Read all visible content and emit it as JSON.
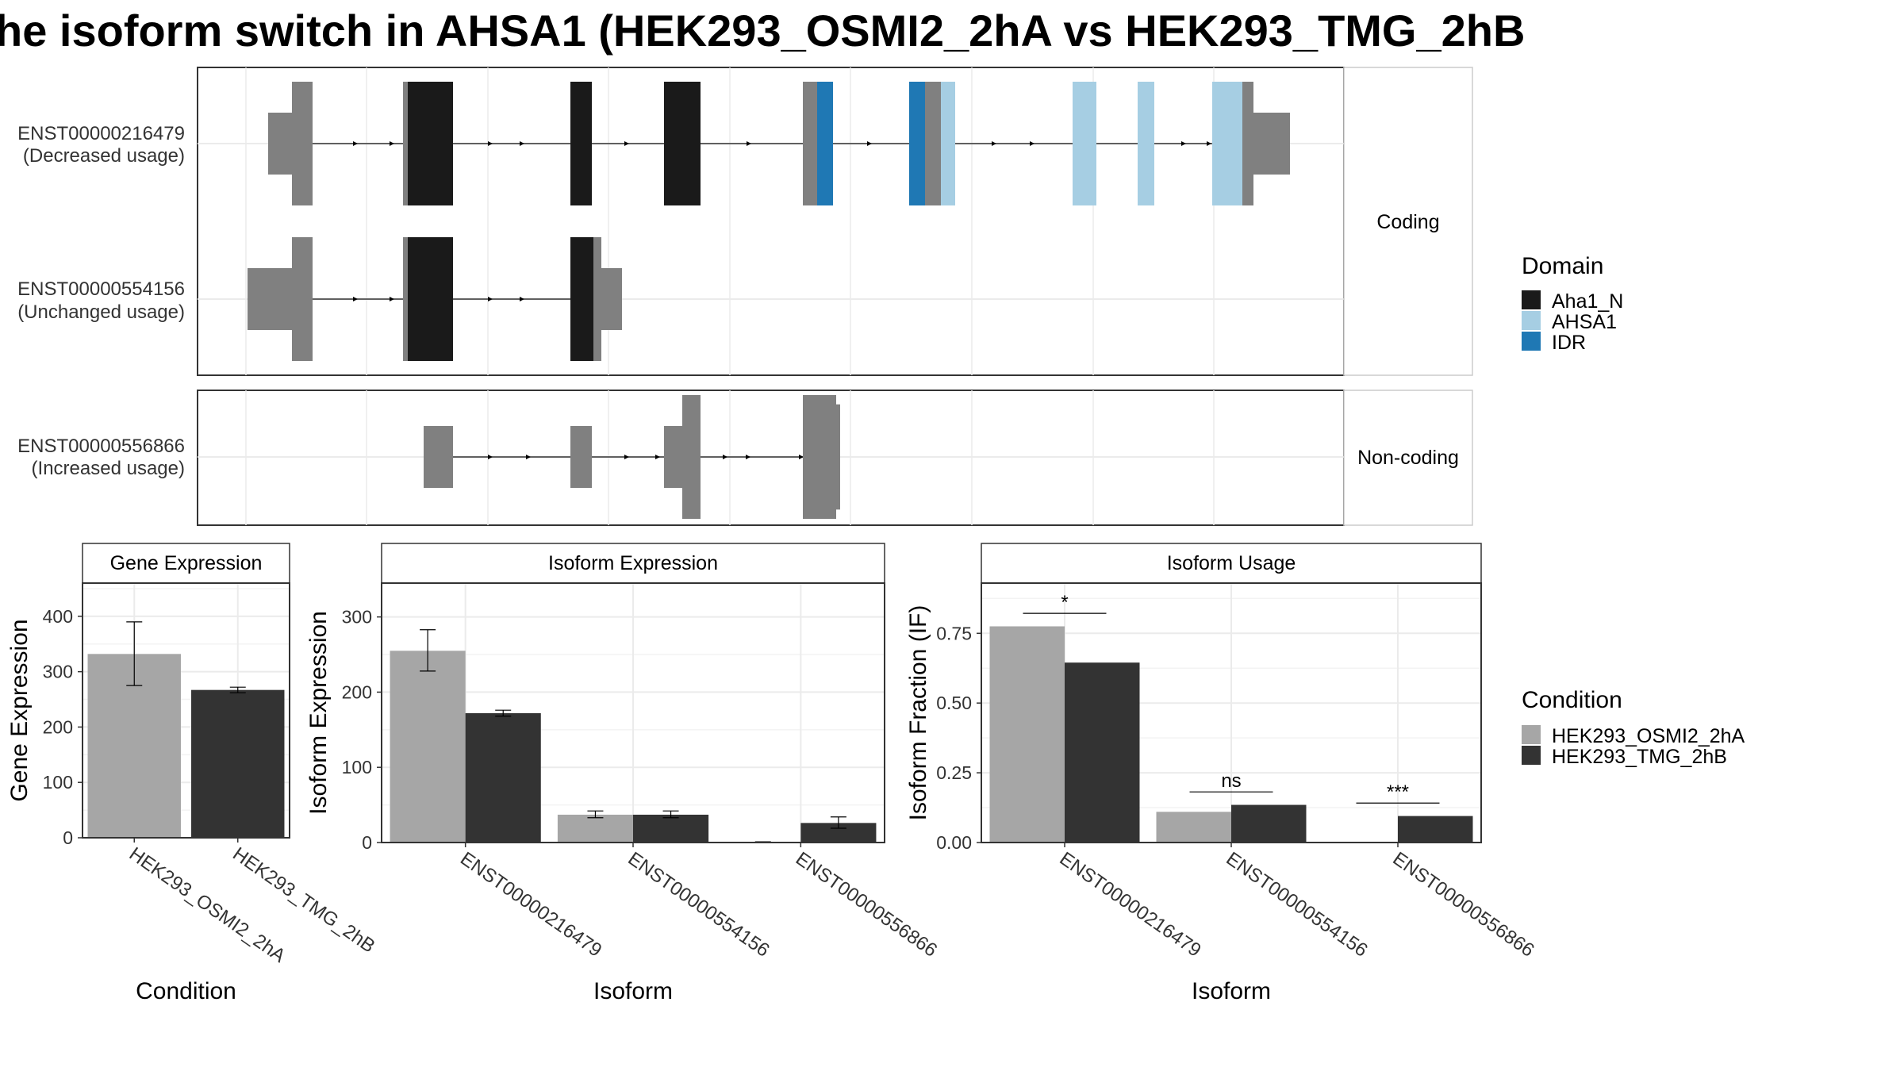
{
  "title": "he isoform switch in AHSA1 (HEK293_OSMI2_2hA vs HEK293_TMG_2hB",
  "colors": {
    "aha1_n": "#1a1a1a",
    "ahsa1": "#a6cee3",
    "idr": "#1f78b4",
    "exon": "#808080",
    "cond_a": "#a6a6a6",
    "cond_b": "#333333",
    "grid": "#ebebeb",
    "strip": "#ffffff"
  },
  "transcripts": [
    {
      "id": "ENST00000216479",
      "usage": "(Decreased usage)",
      "panel": "Coding"
    },
    {
      "id": "ENST00000554156",
      "usage": "(Unchanged usage)",
      "panel": "Coding"
    },
    {
      "id": "ENST00000556866",
      "usage": "(Increased usage)",
      "panel": "Non-coding"
    }
  ],
  "strips": {
    "coding": "Coding",
    "noncoding": "Non-coding"
  },
  "legend_domain": {
    "title": "Domain",
    "items": [
      {
        "label": "Aha1_N",
        "color": "#1a1a1a"
      },
      {
        "label": "AHSA1",
        "color": "#a6cee3"
      },
      {
        "label": "IDR",
        "color": "#1f78b4"
      }
    ]
  },
  "legend_condition": {
    "title": "Condition",
    "items": [
      {
        "label": "HEK293_OSMI2_2hA",
        "color": "#a6a6a6"
      },
      {
        "label": "HEK293_TMG_2hB",
        "color": "#333333"
      }
    ]
  },
  "chart_data": [
    {
      "type": "bar",
      "title": "Gene Expression",
      "xlabel": "Condition",
      "ylabel": "Gene Expression",
      "ylim": [
        0,
        460
      ],
      "yticks": [
        "0",
        "100",
        "200",
        "300",
        "400"
      ],
      "categories": [
        "HEK293_OSMI2_2hA",
        "HEK293_TMG_2hB"
      ],
      "values": [
        332,
        267
      ],
      "errors": [
        [
          275,
          390
        ],
        [
          262,
          272
        ]
      ]
    },
    {
      "type": "bar",
      "title": "Isoform Expression",
      "xlabel": "Isoform",
      "ylabel": "Isoform Expression",
      "ylim": [
        0,
        345
      ],
      "yticks": [
        "0",
        "100",
        "200",
        "300"
      ],
      "categories": [
        "ENST00000216479",
        "ENST00000554156",
        "ENST00000556866"
      ],
      "series": [
        {
          "name": "HEK293_OSMI2_2hA",
          "values": [
            255,
            37,
            0
          ],
          "errors": [
            [
              228,
              283
            ],
            [
              33,
              42
            ],
            [
              0,
              1
            ]
          ]
        },
        {
          "name": "HEK293_TMG_2hB",
          "values": [
            172,
            37,
            26
          ],
          "errors": [
            [
              168,
              176
            ],
            [
              33,
              42
            ],
            [
              19,
              34
            ]
          ]
        }
      ]
    },
    {
      "type": "bar",
      "title": "Isoform Usage",
      "xlabel": "Isoform",
      "ylabel": "Isoform Fraction (IF)",
      "ylim": [
        0,
        0.93
      ],
      "yticks": [
        "0.00",
        "0.25",
        "0.50",
        "0.75"
      ],
      "categories": [
        "ENST00000216479",
        "ENST00000554156",
        "ENST00000556866"
      ],
      "series": [
        {
          "name": "HEK293_OSMI2_2hA",
          "values": [
            0.775,
            0.11,
            0.0
          ]
        },
        {
          "name": "HEK293_TMG_2hB",
          "values": [
            0.645,
            0.135,
            0.095
          ]
        }
      ],
      "significance": [
        "*",
        "ns",
        "***"
      ]
    }
  ]
}
